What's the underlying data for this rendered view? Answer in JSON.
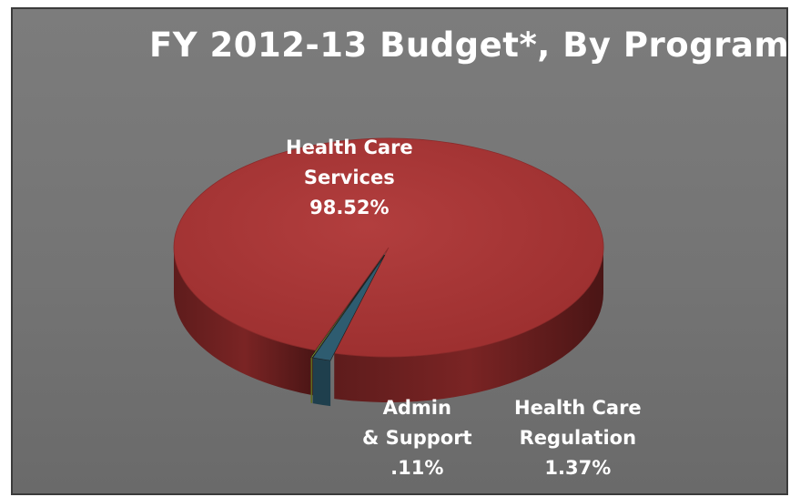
{
  "chart_data": {
    "type": "pie",
    "title": "FY 2012-13 Budget*, By Program",
    "slices": [
      {
        "label_lines": [
          "Health Care",
          "Services"
        ],
        "value_label": "98.52%",
        "value": 98.52,
        "color": "#a43333"
      },
      {
        "label_lines": [
          "Health Care",
          "Regulation"
        ],
        "value_label": "1.37%",
        "value": 1.37,
        "color": "#2e5c70"
      },
      {
        "label_lines": [
          "Admin",
          "& Support"
        ],
        "value_label": ".11%",
        "value": 0.11,
        "color": "#93a82e"
      }
    ],
    "background_color": "#777777",
    "style": "3d-pie"
  }
}
